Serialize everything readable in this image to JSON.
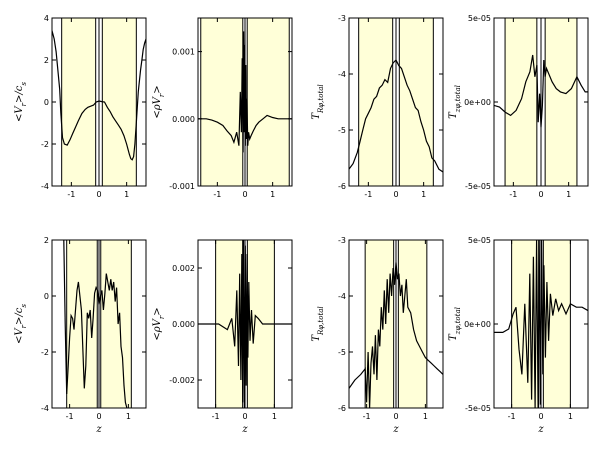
{
  "colors": {
    "band": "#ffffd8",
    "line": "#000000",
    "axis": "#000000"
  },
  "chart_data": [
    {
      "type": "line",
      "xlabel": "",
      "ylabel": "<V_r>/c_s",
      "xlim": [
        -1.7,
        1.7
      ],
      "ylim": [
        -4,
        4
      ],
      "xticks": [
        "-1",
        "0",
        "1"
      ],
      "xtick_values": [
        -1,
        0,
        1
      ],
      "yticks": [
        "-4",
        "-2",
        "0",
        "2",
        "4"
      ],
      "ytick_values": [
        -4,
        -2,
        0,
        2,
        4
      ],
      "bands": [
        [
          -1.35,
          -0.12
        ],
        [
          0.12,
          1.35
        ]
      ],
      "vlines": [
        0
      ],
      "series": [
        {
          "x": [
            -1.7,
            -1.62,
            -1.55,
            -1.48,
            -1.42,
            -1.38,
            -1.32,
            -1.25,
            -1.15,
            -1.05,
            -0.95,
            -0.85,
            -0.75,
            -0.62,
            -0.5,
            -0.4,
            -0.3,
            -0.2,
            -0.1,
            0,
            0.1,
            0.2,
            0.3,
            0.4,
            0.5,
            0.6,
            0.7,
            0.8,
            0.9,
            1,
            1.1,
            1.15,
            1.2,
            1.25,
            1.3,
            1.35,
            1.42,
            1.5,
            1.55,
            1.6,
            1.65,
            1.7
          ],
          "y": [
            3.4,
            3.0,
            2.4,
            1.4,
            0.6,
            -0.5,
            -1.7,
            -2.0,
            -2.05,
            -1.8,
            -1.5,
            -1.2,
            -0.9,
            -0.55,
            -0.35,
            -0.25,
            -0.2,
            -0.15,
            0.0,
            0.05,
            0.02,
            0.0,
            -0.25,
            -0.45,
            -0.7,
            -0.9,
            -1.1,
            -1.3,
            -1.6,
            -2.0,
            -2.5,
            -2.7,
            -2.75,
            -2.6,
            -2.0,
            -1.0,
            0.5,
            1.5,
            2.0,
            2.5,
            2.8,
            3.0
          ]
        }
      ]
    },
    {
      "type": "line",
      "xlabel": "",
      "ylabel": "<ρV_r>",
      "xlim": [
        -1.7,
        1.7
      ],
      "ylim": [
        -0.001,
        0.0015
      ],
      "xticks": [
        "-1",
        "0",
        "1"
      ],
      "xtick_values": [
        -1,
        0,
        1
      ],
      "yticks": [
        "-0.001",
        "0.000",
        "0.001"
      ],
      "ytick_values": [
        -0.001,
        0,
        0.001
      ],
      "bands": [
        [
          -1.6,
          -0.08
        ],
        [
          0.08,
          1.6
        ]
      ],
      "vlines": [
        0
      ],
      "series": [
        {
          "x": [
            -1.7,
            -1.4,
            -1.2,
            -1.0,
            -0.8,
            -0.65,
            -0.5,
            -0.4,
            -0.3,
            -0.22,
            -0.17,
            -0.13,
            -0.1,
            -0.07,
            -0.05,
            -0.03,
            -0.01,
            0.01,
            0.03,
            0.05,
            0.07,
            0.1,
            0.13,
            0.17,
            0.22,
            0.3,
            0.4,
            0.5,
            0.65,
            0.8,
            1.0,
            1.2,
            1.4,
            1.7
          ],
          "y": [
            0,
            0,
            -2e-05,
            -5e-05,
            -0.0001,
            -0.00018,
            -0.00025,
            -0.00035,
            -0.0002,
            -0.0004,
            0.0004,
            -0.0002,
            0.0009,
            -0.0005,
            0.0013,
            -0.0002,
            0.0011,
            -0.0004,
            0.0008,
            -0.0003,
            0.0003,
            -0.0004,
            -0.0002,
            -0.0003,
            -0.00025,
            -0.00018,
            -0.0001,
            -5e-05,
            0,
            5e-05,
            2e-05,
            0,
            0,
            0
          ]
        }
      ]
    },
    {
      "type": "line",
      "xlabel": "",
      "ylabel": "T_{Rφ,total}",
      "xlim": [
        -1.7,
        1.7
      ],
      "ylim": [
        -6,
        -3
      ],
      "xticks": [
        "-1",
        "0",
        "1"
      ],
      "xtick_values": [
        -1,
        0,
        1
      ],
      "yticks": [
        "-6",
        "-5",
        "-4",
        "-3"
      ],
      "ytick_values": [
        -6,
        -5,
        -4,
        -3
      ],
      "bands": [
        [
          -1.35,
          -0.12
        ],
        [
          0.12,
          1.35
        ]
      ],
      "vlines": [
        0
      ],
      "series": [
        {
          "x": [
            -1.7,
            -1.55,
            -1.4,
            -1.3,
            -1.2,
            -1.1,
            -1.0,
            -0.9,
            -0.8,
            -0.7,
            -0.6,
            -0.5,
            -0.4,
            -0.3,
            -0.2,
            -0.1,
            0,
            0.1,
            0.2,
            0.3,
            0.4,
            0.5,
            0.6,
            0.7,
            0.8,
            0.9,
            1.0,
            1.1,
            1.2,
            1.3,
            1.4,
            1.55,
            1.7
          ],
          "y": [
            -5.7,
            -5.6,
            -5.4,
            -5.2,
            -5.0,
            -4.8,
            -4.7,
            -4.6,
            -4.45,
            -4.4,
            -4.25,
            -4.2,
            -4.1,
            -4.15,
            -3.9,
            -3.8,
            -3.75,
            -3.85,
            -3.9,
            -4.05,
            -4.2,
            -4.3,
            -4.45,
            -4.6,
            -4.65,
            -4.85,
            -5.0,
            -5.2,
            -5.3,
            -5.5,
            -5.55,
            -5.7,
            -5.75
          ]
        }
      ]
    },
    {
      "type": "line",
      "xlabel": "",
      "ylabel": "T_{zφ,total}",
      "xlim": [
        -1.7,
        1.7
      ],
      "ylim": [
        -5e-05,
        5e-05
      ],
      "xticks": [
        "-1",
        "0",
        "1"
      ],
      "xtick_values": [
        -1,
        0,
        1
      ],
      "yticks": [
        "-5e-05",
        "0e+00",
        "5e-05"
      ],
      "ytick_values": [
        -5e-05,
        0,
        5e-05
      ],
      "bands": [
        [
          -1.3,
          -0.15
        ],
        [
          0.15,
          1.3
        ]
      ],
      "vlines": [
        0
      ],
      "series": [
        {
          "x": [
            -1.7,
            -1.5,
            -1.3,
            -1.1,
            -0.9,
            -0.7,
            -0.55,
            -0.4,
            -0.3,
            -0.22,
            -0.15,
            -0.1,
            -0.05,
            0,
            0.05,
            0.1,
            0.15,
            0.2,
            0.3,
            0.4,
            0.55,
            0.7,
            0.9,
            1.1,
            1.3,
            1.45,
            1.6,
            1.7
          ],
          "y": [
            -2e-06,
            -3e-06,
            -6e-06,
            -8e-06,
            -5e-06,
            2e-06,
            1.2e-05,
            1.8e-05,
            2.8e-05,
            1.5e-05,
            2.2e-05,
            -1.2e-05,
            5e-06,
            -1.5e-05,
            -2e-06,
            2.5e-05,
            1.5e-05,
            2e-05,
            1.6e-05,
            1.2e-05,
            8e-06,
            6e-06,
            5e-06,
            8e-06,
            1.5e-05,
            1e-05,
            6e-06,
            6e-06
          ]
        }
      ]
    },
    {
      "type": "line",
      "xlabel": "z",
      "ylabel": "<V_r>/c_s",
      "xlim": [
        -1.6,
        1.6
      ],
      "ylim": [
        -4,
        2
      ],
      "xticks": [
        "-1",
        "0",
        "1"
      ],
      "xtick_values": [
        -1,
        0,
        1
      ],
      "yticks": [
        "-4",
        "-2",
        "0",
        "2"
      ],
      "ytick_values": [
        -4,
        -2,
        0,
        2
      ],
      "bands": [
        [
          -1.1,
          -0.06
        ],
        [
          0.06,
          1.1
        ]
      ],
      "vlines": [
        0
      ],
      "series": [
        {
          "x": [
            -1.2,
            -1.15,
            -1.1,
            -1.05,
            -1.0,
            -0.95,
            -0.9,
            -0.85,
            -0.8,
            -0.75,
            -0.7,
            -0.6,
            -0.5,
            -0.45,
            -0.4,
            -0.35,
            -0.3,
            -0.25,
            -0.2,
            -0.15,
            -0.1,
            -0.05,
            0,
            0.05,
            0.1,
            0.15,
            0.2,
            0.25,
            0.3,
            0.35,
            0.4,
            0.45,
            0.5,
            0.55,
            0.6,
            0.65,
            0.7,
            0.75,
            0.8,
            0.85,
            0.9,
            0.95
          ],
          "y": [
            2.0,
            -1.0,
            -3.5,
            -2.5,
            -1.5,
            -0.7,
            -0.8,
            -1.2,
            -0.5,
            0.2,
            0.5,
            -0.5,
            -3.3,
            -2.5,
            -0.6,
            -0.8,
            -0.5,
            -1.5,
            -0.8,
            0.1,
            0.3,
            0.2,
            -0.3,
            0.0,
            0.2,
            -0.5,
            0.1,
            0.8,
            0.5,
            0.2,
            0.6,
            0.2,
            0.5,
            -0.2,
            0.3,
            -1.0,
            -0.6,
            -1.8,
            -2.2,
            -3.2,
            -3.8,
            -4.0
          ]
        }
      ]
    },
    {
      "type": "line",
      "xlabel": "z",
      "ylabel": "<ρV_r>",
      "xlim": [
        -1.6,
        1.6
      ],
      "ylim": [
        -0.003,
        0.003
      ],
      "xticks": [
        "-1",
        "0",
        "1"
      ],
      "xtick_values": [
        -1,
        0,
        1
      ],
      "yticks": [
        "-0.002",
        "0.000",
        "0.002"
      ],
      "ytick_values": [
        -0.002,
        0,
        0.002
      ],
      "bands": [
        [
          -1.0,
          -0.08
        ],
        [
          0.08,
          1.0
        ]
      ],
      "vlines": [
        0
      ],
      "series": [
        {
          "x": [
            -1.6,
            -1.2,
            -0.9,
            -0.6,
            -0.45,
            -0.35,
            -0.28,
            -0.22,
            -0.18,
            -0.14,
            -0.11,
            -0.08,
            -0.05,
            -0.02,
            0.01,
            0.04,
            0.07,
            0.1,
            0.13,
            0.17,
            0.22,
            0.28,
            0.35,
            0.45,
            0.6,
            0.9,
            1.2,
            1.6
          ],
          "y": [
            0,
            0,
            0,
            -0.0002,
            0.0002,
            -0.0008,
            0.0012,
            -0.0015,
            0.0018,
            -0.002,
            0.0025,
            -0.0028,
            0.003,
            -0.003,
            0.0028,
            -0.0022,
            0.0025,
            -0.0012,
            0.0015,
            -0.0006,
            0.0005,
            -0.0007,
            0.0003,
            0.0002,
            0,
            0,
            0,
            0
          ]
        }
      ]
    },
    {
      "type": "line",
      "xlabel": "z",
      "ylabel": "T_{Rφ,total}",
      "xlim": [
        -1.6,
        1.6
      ],
      "ylim": [
        -6,
        -3
      ],
      "xticks": [
        "-1",
        "0",
        "1"
      ],
      "xtick_values": [
        -1,
        0,
        1
      ],
      "yticks": [
        "-6",
        "-5",
        "-4",
        "-3"
      ],
      "ytick_values": [
        -6,
        -5,
        -4,
        -3
      ],
      "bands": [
        [
          -1.05,
          -0.08
        ],
        [
          0.08,
          1.05
        ]
      ],
      "vlines": [
        0
      ],
      "series": [
        {
          "x": [
            -1.6,
            -1.4,
            -1.2,
            -1.05,
            -1.0,
            -0.95,
            -0.9,
            -0.85,
            -0.8,
            -0.75,
            -0.7,
            -0.65,
            -0.6,
            -0.55,
            -0.5,
            -0.45,
            -0.4,
            -0.35,
            -0.3,
            -0.25,
            -0.2,
            -0.15,
            -0.1,
            -0.05,
            0,
            0.05,
            0.1,
            0.15,
            0.2,
            0.25,
            0.3,
            0.35,
            0.4,
            0.5,
            0.6,
            0.7,
            0.8,
            0.9,
            1.0,
            1.1,
            1.2,
            1.3,
            1.4,
            1.5,
            1.6
          ],
          "y": [
            -5.65,
            -5.5,
            -5.4,
            -5.3,
            -5.9,
            -5.0,
            -6.0,
            -5.2,
            -4.9,
            -5.4,
            -4.7,
            -5.5,
            -4.6,
            -4.9,
            -4.2,
            -4.6,
            -3.9,
            -4.5,
            -3.7,
            -4.3,
            -3.6,
            -4.0,
            -3.5,
            -3.8,
            -3.4,
            -3.7,
            -3.6,
            -4.0,
            -3.8,
            -4.3,
            -4.0,
            -3.7,
            -4.2,
            -4.3,
            -4.6,
            -4.8,
            -4.9,
            -5.0,
            -5.1,
            -5.15,
            -5.2,
            -5.25,
            -5.3,
            -5.35,
            -5.4
          ]
        }
      ]
    },
    {
      "type": "line",
      "xlabel": "z",
      "ylabel": "T_{zφ,total}",
      "xlim": [
        -1.6,
        1.6
      ],
      "ylim": [
        -5e-05,
        5e-05
      ],
      "xticks": [
        "-1",
        "0",
        "1"
      ],
      "xtick_values": [
        -1,
        0,
        1
      ],
      "yticks": [
        "-5e-05",
        "0e+00",
        "5e-05"
      ],
      "ytick_values": [
        -5e-05,
        0,
        5e-05
      ],
      "bands": [
        [
          -1.0,
          -0.08
        ],
        [
          0.08,
          1.0
        ]
      ],
      "vlines": [
        0
      ],
      "series": [
        {
          "x": [
            -1.6,
            -1.3,
            -1.1,
            -0.95,
            -0.85,
            -0.75,
            -0.65,
            -0.55,
            -0.45,
            -0.38,
            -0.32,
            -0.26,
            -0.2,
            -0.15,
            -0.1,
            -0.06,
            -0.02,
            0.02,
            0.06,
            0.1,
            0.15,
            0.2,
            0.26,
            0.32,
            0.4,
            0.5,
            0.6,
            0.7,
            0.85,
            1.0,
            1.2,
            1.4,
            1.6
          ],
          "y": [
            -5e-06,
            -5e-06,
            -3e-06,
            6e-06,
            1e-05,
            -1.5e-05,
            -3e-05,
            1.2e-05,
            -3.5e-05,
            3e-05,
            -4.5e-05,
            4e-05,
            -5e-05,
            5e-05,
            -5e-05,
            5e-05,
            -4.8e-05,
            5e-05,
            -3e-05,
            3.5e-05,
            -2e-05,
            2.5e-05,
            -1e-05,
            1.8e-05,
            5e-06,
            1.5e-05,
            8e-06,
            1.2e-05,
            6e-06,
            1.2e-05,
            1e-05,
            1e-05,
            8e-06
          ]
        }
      ]
    }
  ]
}
